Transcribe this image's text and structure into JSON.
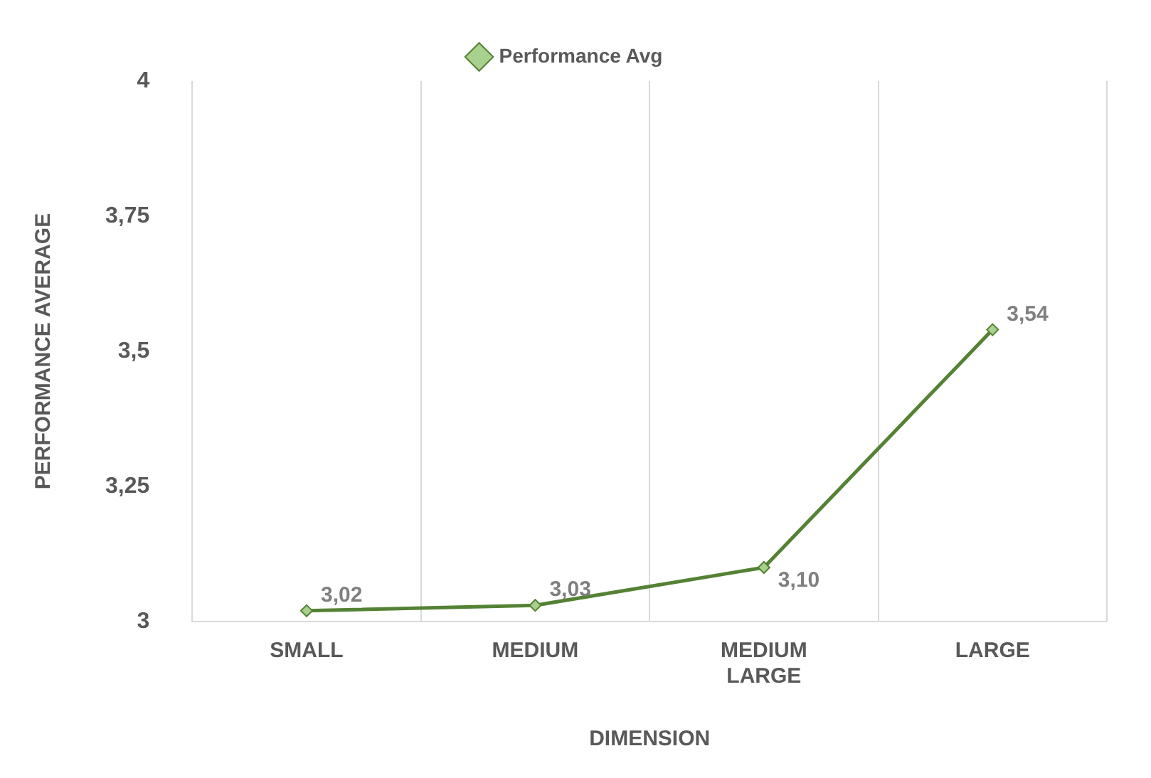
{
  "chart_data": {
    "type": "line",
    "xlabel": "DIMENSION",
    "ylabel": "PERFORMANCE AVERAGE",
    "categories": [
      "SMALL",
      "MEDIUM",
      "MEDIUM LARGE",
      "LARGE"
    ],
    "series": [
      {
        "name": "Performance Avg",
        "color": "#548235",
        "values": [
          3.02,
          3.03,
          3.1,
          3.54
        ],
        "value_labels": [
          "3,02",
          "3,03",
          "3,10",
          "3,54"
        ]
      }
    ],
    "ylim": [
      3,
      4
    ],
    "yticks": [
      3,
      {
        "value": 3.25,
        "label": "3,25"
      },
      {
        "value": 3.5,
        "label": "3,5"
      },
      {
        "value": 3.75,
        "label": "3,75"
      },
      4
    ],
    "grid": "x",
    "legend": "top",
    "marker": "diamond",
    "line_style": "solid"
  }
}
